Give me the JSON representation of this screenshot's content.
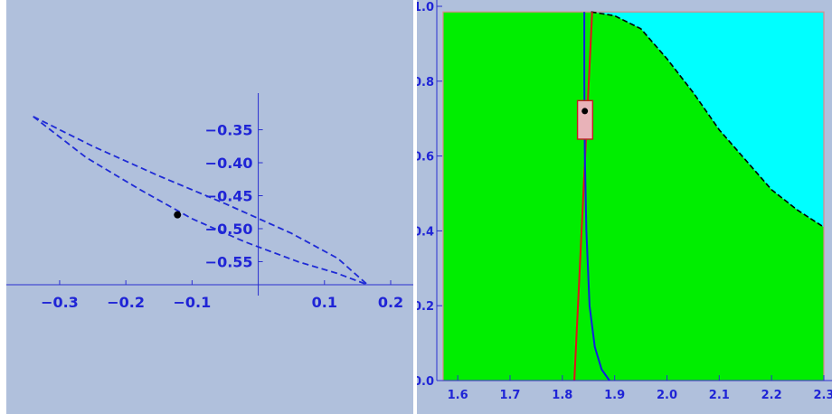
{
  "colors": {
    "panel_bg": "#b0c0dc",
    "axis": "#2a2fd0",
    "curve": "#1f2bd6",
    "point": "#000000",
    "region_green": "#00ee00",
    "region_cyan": "#00ffff",
    "region_edge": "#d98a8a",
    "red_line": "#e0141b",
    "blue_curve": "#1020e0",
    "box_fill": "#e8b2b8",
    "box_edge": "#c02020",
    "tick_text": "#1f24d6"
  },
  "chart_data": [
    {
      "type": "line",
      "title": "",
      "xlabel": "",
      "ylabel": "",
      "xlim": [
        -0.345,
        0.2
      ],
      "ylim": [
        -0.585,
        -0.315
      ],
      "axis_origin": {
        "x": 0,
        "y": -0.585
      },
      "grid": false,
      "x_ticks": [
        {
          "value": -0.3,
          "label": "−0.3"
        },
        {
          "value": -0.2,
          "label": "−0.2"
        },
        {
          "value": -0.1,
          "label": "−0.1"
        },
        {
          "value": 0.1,
          "label": "0.1"
        },
        {
          "value": 0.2,
          "label": "0.2"
        }
      ],
      "y_ticks": [
        {
          "value": -0.35,
          "label": "−0.35"
        },
        {
          "value": -0.4,
          "label": "−0.40"
        },
        {
          "value": -0.45,
          "label": "−0.45"
        },
        {
          "value": -0.5,
          "label": "−0.50"
        },
        {
          "value": -0.55,
          "label": "−0.55"
        }
      ],
      "series": [
        {
          "style": "dashed",
          "points": [
            [
              -0.34,
              -0.33
            ],
            [
              -0.25,
              -0.375
            ],
            [
              -0.15,
              -0.42
            ],
            [
              -0.05,
              -0.462
            ],
            [
              0.05,
              -0.507
            ],
            [
              0.12,
              -0.545
            ],
            [
              0.165,
              -0.585
            ]
          ]
        },
        {
          "style": "dashed",
          "points": [
            [
              -0.34,
              -0.33
            ],
            [
              -0.26,
              -0.392
            ],
            [
              -0.18,
              -0.44
            ],
            [
              -0.1,
              -0.485
            ],
            [
              -0.02,
              -0.52
            ],
            [
              0.06,
              -0.55
            ],
            [
              0.12,
              -0.568
            ],
            [
              0.165,
              -0.585
            ]
          ]
        }
      ],
      "point_marker": {
        "x": -0.122,
        "y": -0.479
      }
    },
    {
      "type": "area",
      "title": "",
      "xlabel": "",
      "ylabel": "",
      "xlim": [
        1.56,
        2.3
      ],
      "ylim": [
        0.0,
        1.0
      ],
      "grid": false,
      "x_ticks": [
        {
          "value": 1.6,
          "label": "1.6"
        },
        {
          "value": 1.7,
          "label": "1.7"
        },
        {
          "value": 1.8,
          "label": "1.8"
        },
        {
          "value": 1.9,
          "label": "1.9"
        },
        {
          "value": 2.0,
          "label": "2.0"
        },
        {
          "value": 2.1,
          "label": "2.1"
        },
        {
          "value": 2.2,
          "label": "2.2"
        },
        {
          "value": 2.3,
          "label": "2.3"
        }
      ],
      "y_ticks": [
        {
          "value": 0.0,
          "label": "0.0"
        },
        {
          "value": 0.2,
          "label": "0.2"
        },
        {
          "value": 0.4,
          "label": "0.4"
        },
        {
          "value": 0.6,
          "label": "0.6"
        },
        {
          "value": 0.8,
          "label": "0.8"
        },
        {
          "value": 1.0,
          "label": "1.0"
        }
      ],
      "region_bounds": {
        "x": [
          1.572,
          2.3
        ],
        "y": [
          0.0,
          0.985
        ]
      },
      "boundary_curve": [
        [
          1.855,
          0.985
        ],
        [
          1.9,
          0.975
        ],
        [
          1.95,
          0.94
        ],
        [
          2.0,
          0.86
        ],
        [
          2.05,
          0.77
        ],
        [
          2.1,
          0.67
        ],
        [
          2.15,
          0.59
        ],
        [
          2.2,
          0.51
        ],
        [
          2.25,
          0.455
        ],
        [
          2.3,
          0.41
        ]
      ],
      "red_line": [
        [
          1.823,
          0.0
        ],
        [
          1.857,
          0.985
        ]
      ],
      "blue_curve": [
        [
          1.842,
          0.985
        ],
        [
          1.842,
          0.8
        ],
        [
          1.843,
          0.6
        ],
        [
          1.846,
          0.4
        ],
        [
          1.852,
          0.2
        ],
        [
          1.862,
          0.09
        ],
        [
          1.875,
          0.03
        ],
        [
          1.89,
          0.0
        ]
      ],
      "box": {
        "x0": 1.829,
        "x1": 1.858,
        "y0": 0.645,
        "y1": 0.748
      },
      "point_marker": {
        "x": 1.843,
        "y": 0.72
      }
    }
  ]
}
